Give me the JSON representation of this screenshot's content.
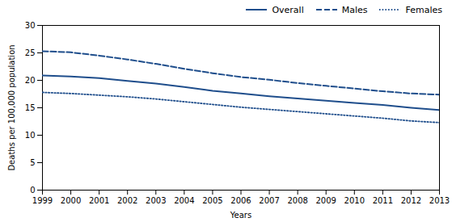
{
  "chart_data": {
    "type": "line",
    "xlabel": "Years",
    "ylabel": "Deaths per 100,000 population",
    "x": [
      1999,
      2000,
      2001,
      2002,
      2003,
      2004,
      2005,
      2006,
      2007,
      2008,
      2009,
      2010,
      2011,
      2012,
      2013
    ],
    "series": [
      {
        "name": "Overall",
        "color": "#1F4E8C",
        "line_style": "solid",
        "values": [
          20.9,
          20.7,
          20.4,
          19.9,
          19.4,
          18.8,
          18.1,
          17.6,
          17.1,
          16.7,
          16.3,
          15.9,
          15.5,
          15.0,
          14.6
        ]
      },
      {
        "name": "Males",
        "color": "#1F4E8C",
        "line_style": "dashed",
        "values": [
          25.3,
          25.1,
          24.5,
          23.8,
          23.0,
          22.1,
          21.3,
          20.6,
          20.1,
          19.5,
          19.0,
          18.5,
          18.0,
          17.6,
          17.4
        ]
      },
      {
        "name": "Females",
        "color": "#1F4E8C",
        "line_style": "dotted",
        "values": [
          17.8,
          17.6,
          17.3,
          17.0,
          16.6,
          16.1,
          15.6,
          15.1,
          14.7,
          14.3,
          13.9,
          13.5,
          13.1,
          12.6,
          12.3
        ]
      }
    ],
    "xlim": [
      1999,
      2013
    ],
    "xticks": [
      1999,
      2000,
      2001,
      2002,
      2003,
      2004,
      2005,
      2006,
      2007,
      2008,
      2009,
      2010,
      2011,
      2012,
      2013
    ],
    "ylim": [
      0,
      30
    ],
    "yticks": [
      0,
      5,
      10,
      15,
      20,
      25,
      30
    ],
    "legend": "upper right"
  }
}
